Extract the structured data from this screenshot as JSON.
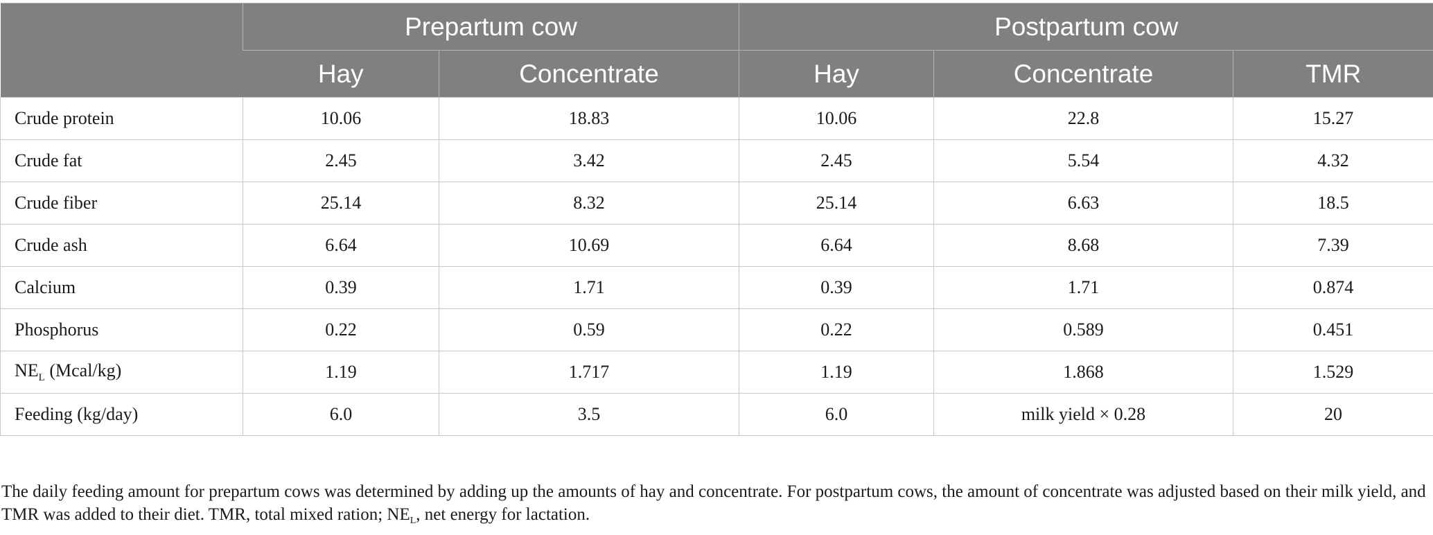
{
  "table": {
    "header": {
      "group1": "Prepartum cow",
      "group2": "Postpartum cow",
      "columns": [
        "Hay",
        "Concentrate",
        "Hay",
        "Concentrate",
        "TMR"
      ]
    },
    "rows": [
      {
        "label": "Crude protein",
        "values": [
          "10.06",
          "18.83",
          "10.06",
          "22.8",
          "15.27"
        ]
      },
      {
        "label": "Crude fat",
        "values": [
          "2.45",
          "3.42",
          "2.45",
          "5.54",
          "4.32"
        ]
      },
      {
        "label": "Crude fiber",
        "values": [
          "25.14",
          "8.32",
          "25.14",
          "6.63",
          "18.5"
        ]
      },
      {
        "label": "Crude ash",
        "values": [
          "6.64",
          "10.69",
          "6.64",
          "8.68",
          "7.39"
        ]
      },
      {
        "label": "Calcium",
        "values": [
          "0.39",
          "1.71",
          "0.39",
          "1.71",
          "0.874"
        ]
      },
      {
        "label": "Phosphorus",
        "values": [
          "0.22",
          "0.59",
          "0.22",
          "0.589",
          "0.451"
        ]
      },
      {
        "label_main": "NE",
        "label_sub": "L",
        "label_rest": " (Mcal/kg)",
        "values": [
          "1.19",
          "1.717",
          "1.19",
          "1.868",
          "1.529"
        ]
      },
      {
        "label": "Feeding (kg/day)",
        "values": [
          "6.0",
          "3.5",
          "6.0",
          "milk yield × 0.28",
          "20"
        ]
      }
    ]
  },
  "footnote": {
    "part1": "The daily feeding amount for prepartum cows was determined by adding up the amounts of hay and concentrate. For postpartum cows, the amount of concentrate was adjusted based on their milk yield, and TMR was added to their diet. TMR, total mixed ration; NE",
    "sub": "L",
    "part2": ", net energy for lactation."
  }
}
